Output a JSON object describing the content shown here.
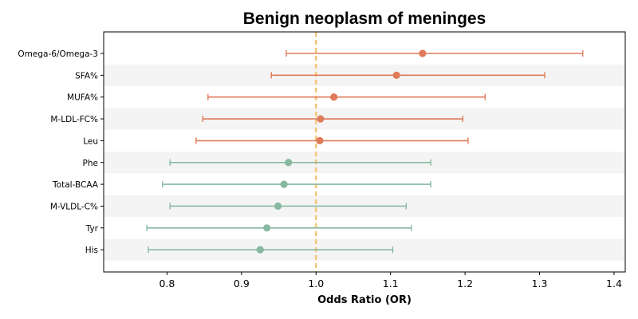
{
  "chart_data": {
    "type": "forest",
    "title": "Benign neoplasm of meninges",
    "xlabel": "Odds Ratio (OR)",
    "ylabel": "",
    "xlim": [
      0.715,
      1.415
    ],
    "xticks": [
      0.8,
      0.9,
      1.0,
      1.1,
      1.2,
      1.3,
      1.4
    ],
    "xtick_labels": [
      "0.8",
      "0.9",
      "1.0",
      "1.1",
      "1.2",
      "1.3",
      "1.4"
    ],
    "reference_line": 1.0,
    "reference_line_color": "#F5C77E",
    "colors": {
      "risk": "#E07B5A",
      "protective": "#86B9A0",
      "band": "#F4F4F4"
    },
    "grid": false,
    "rows": [
      {
        "label": "Omega-6/Omega-3",
        "or": 1.143,
        "lower": 0.96,
        "upper": 1.358,
        "group": "risk"
      },
      {
        "label": "SFA%",
        "or": 1.108,
        "lower": 0.94,
        "upper": 1.307,
        "group": "risk"
      },
      {
        "label": "MUFA%",
        "or": 1.024,
        "lower": 0.855,
        "upper": 1.227,
        "group": "risk"
      },
      {
        "label": "M-LDL-FC%",
        "or": 1.006,
        "lower": 0.848,
        "upper": 1.197,
        "group": "risk"
      },
      {
        "label": "Leu",
        "or": 1.005,
        "lower": 0.839,
        "upper": 1.204,
        "group": "risk"
      },
      {
        "label": "Phe",
        "or": 0.963,
        "lower": 0.804,
        "upper": 1.154,
        "group": "protective"
      },
      {
        "label": "Total-BCAA",
        "or": 0.957,
        "lower": 0.794,
        "upper": 1.154,
        "group": "protective"
      },
      {
        "label": "M-VLDL-C%",
        "or": 0.949,
        "lower": 0.804,
        "upper": 1.121,
        "group": "protective"
      },
      {
        "label": "Tyr",
        "or": 0.934,
        "lower": 0.773,
        "upper": 1.128,
        "group": "protective"
      },
      {
        "label": "His",
        "or": 0.925,
        "lower": 0.775,
        "upper": 1.103,
        "group": "protective"
      }
    ]
  }
}
